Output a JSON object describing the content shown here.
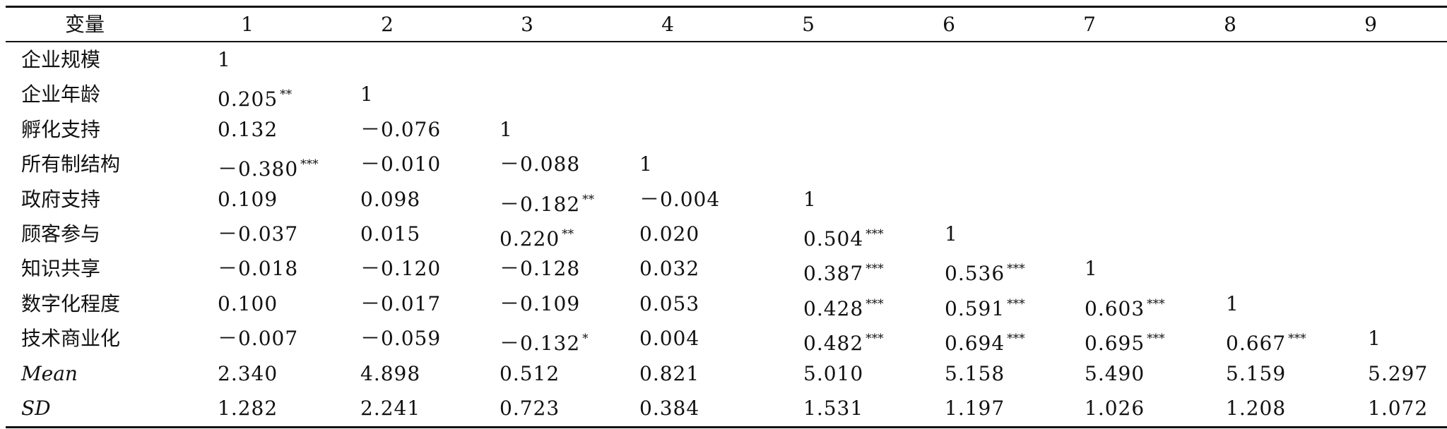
{
  "header": [
    "变量",
    "1",
    "2",
    "3",
    "4",
    "5",
    "6",
    "7",
    "8",
    "9"
  ],
  "rows": [
    {
      "label": "企业规模",
      "italic": false,
      "cells": [
        [
          "1",
          ""
        ]
      ]
    },
    {
      "label": "企业年龄",
      "italic": false,
      "cells": [
        [
          "0.205",
          "**"
        ],
        [
          "1",
          ""
        ]
      ]
    },
    {
      "label": "孵化支持",
      "italic": false,
      "cells": [
        [
          "0.132",
          ""
        ],
        [
          "－0.076",
          ""
        ],
        [
          "1",
          ""
        ]
      ]
    },
    {
      "label": "所有制结构",
      "italic": false,
      "cells": [
        [
          "－0.380",
          "***"
        ],
        [
          "－0.010",
          ""
        ],
        [
          "－0.088",
          ""
        ],
        [
          "1",
          ""
        ]
      ]
    },
    {
      "label": "政府支持",
      "italic": false,
      "cells": [
        [
          "0.109",
          ""
        ],
        [
          "0.098",
          ""
        ],
        [
          "－0.182",
          "**"
        ],
        [
          "－0.004",
          ""
        ],
        [
          "1",
          ""
        ]
      ]
    },
    {
      "label": "顾客参与",
      "italic": false,
      "cells": [
        [
          "－0.037",
          ""
        ],
        [
          "0.015",
          ""
        ],
        [
          "0.220",
          "**"
        ],
        [
          "0.020",
          ""
        ],
        [
          "0.504",
          "***"
        ],
        [
          "1",
          ""
        ]
      ]
    },
    {
      "label": "知识共享",
      "italic": false,
      "cells": [
        [
          "－0.018",
          ""
        ],
        [
          "－0.120",
          ""
        ],
        [
          "－0.128",
          ""
        ],
        [
          "0.032",
          ""
        ],
        [
          "0.387",
          "***"
        ],
        [
          "0.536",
          "***"
        ],
        [
          "1",
          ""
        ]
      ]
    },
    {
      "label": "数字化程度",
      "italic": false,
      "cells": [
        [
          "0.100",
          ""
        ],
        [
          "－0.017",
          ""
        ],
        [
          "－0.109",
          ""
        ],
        [
          "0.053",
          ""
        ],
        [
          "0.428",
          "***"
        ],
        [
          "0.591",
          "***"
        ],
        [
          "0.603",
          "***"
        ],
        [
          "1",
          ""
        ]
      ]
    },
    {
      "label": "技术商业化",
      "italic": false,
      "cells": [
        [
          "－0.007",
          ""
        ],
        [
          "－0.059",
          ""
        ],
        [
          "－0.132",
          "*"
        ],
        [
          "0.004",
          ""
        ],
        [
          "0.482",
          "***"
        ],
        [
          "0.694",
          "***"
        ],
        [
          "0.695",
          "***"
        ],
        [
          "0.667",
          "***"
        ],
        [
          "1",
          ""
        ]
      ]
    },
    {
      "label": "Mean",
      "italic": true,
      "cells": [
        [
          "2.340",
          ""
        ],
        [
          "4.898",
          ""
        ],
        [
          "0.512",
          ""
        ],
        [
          "0.821",
          ""
        ],
        [
          "5.010",
          ""
        ],
        [
          "5.158",
          ""
        ],
        [
          "5.490",
          ""
        ],
        [
          "5.159",
          ""
        ],
        [
          "5.297",
          ""
        ]
      ]
    },
    {
      "label": "SD",
      "italic": true,
      "cells": [
        [
          "1.282",
          ""
        ],
        [
          "2.241",
          ""
        ],
        [
          "0.723",
          ""
        ],
        [
          "0.384",
          ""
        ],
        [
          "1.531",
          ""
        ],
        [
          "1.197",
          ""
        ],
        [
          "1.026",
          ""
        ],
        [
          "1.208",
          ""
        ],
        [
          "1.072",
          ""
        ]
      ]
    }
  ]
}
